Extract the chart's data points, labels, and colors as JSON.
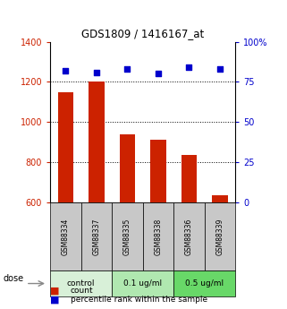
{
  "title": "GDS1809 / 1416167_at",
  "samples": [
    "GSM88334",
    "GSM88337",
    "GSM88335",
    "GSM88338",
    "GSM88336",
    "GSM88339"
  ],
  "counts": [
    1150,
    1200,
    940,
    910,
    835,
    635
  ],
  "percentile_ranks": [
    82,
    81,
    83,
    80,
    84,
    83
  ],
  "ylim_left": [
    600,
    1400
  ],
  "ylim_right": [
    0,
    100
  ],
  "yticks_left": [
    600,
    800,
    1000,
    1200,
    1400
  ],
  "yticks_right": [
    0,
    25,
    50,
    75,
    100
  ],
  "yticklabels_right": [
    "0",
    "25",
    "50",
    "75",
    "100%"
  ],
  "bar_color": "#cc2200",
  "dot_color": "#0000cc",
  "dose_label": "dose",
  "legend_count": "count",
  "legend_pct": "percentile rank within the sample",
  "sample_bg": "#c8c8c8",
  "group_defs": [
    [
      0,
      1,
      "control",
      "#d8f0d8"
    ],
    [
      2,
      3,
      "0.1 ug/ml",
      "#b0e8b0"
    ],
    [
      4,
      5,
      "0.5 ug/ml",
      "#68d868"
    ]
  ]
}
